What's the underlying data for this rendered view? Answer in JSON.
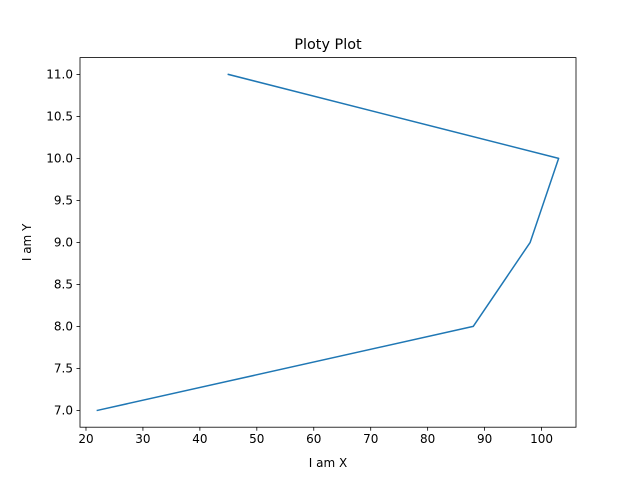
{
  "chart_data": {
    "type": "line",
    "title": "Ploty Plot",
    "xlabel": "I am X",
    "ylabel": "I am Y",
    "xlim": [
      18.95,
      106.05
    ],
    "ylim": [
      6.8,
      11.2
    ],
    "x_ticks": [
      20,
      30,
      40,
      50,
      60,
      70,
      80,
      90,
      100
    ],
    "y_ticks": [
      7.0,
      7.5,
      8.0,
      8.5,
      9.0,
      9.5,
      10.0,
      10.5,
      11.0
    ],
    "grid": false,
    "series": [
      {
        "color": "#1f77b4",
        "points": [
          {
            "x": 45,
            "y": 11
          },
          {
            "x": 103,
            "y": 10
          },
          {
            "x": 98,
            "y": 9
          },
          {
            "x": 88,
            "y": 8
          },
          {
            "x": 22,
            "y": 7
          }
        ]
      }
    ]
  }
}
